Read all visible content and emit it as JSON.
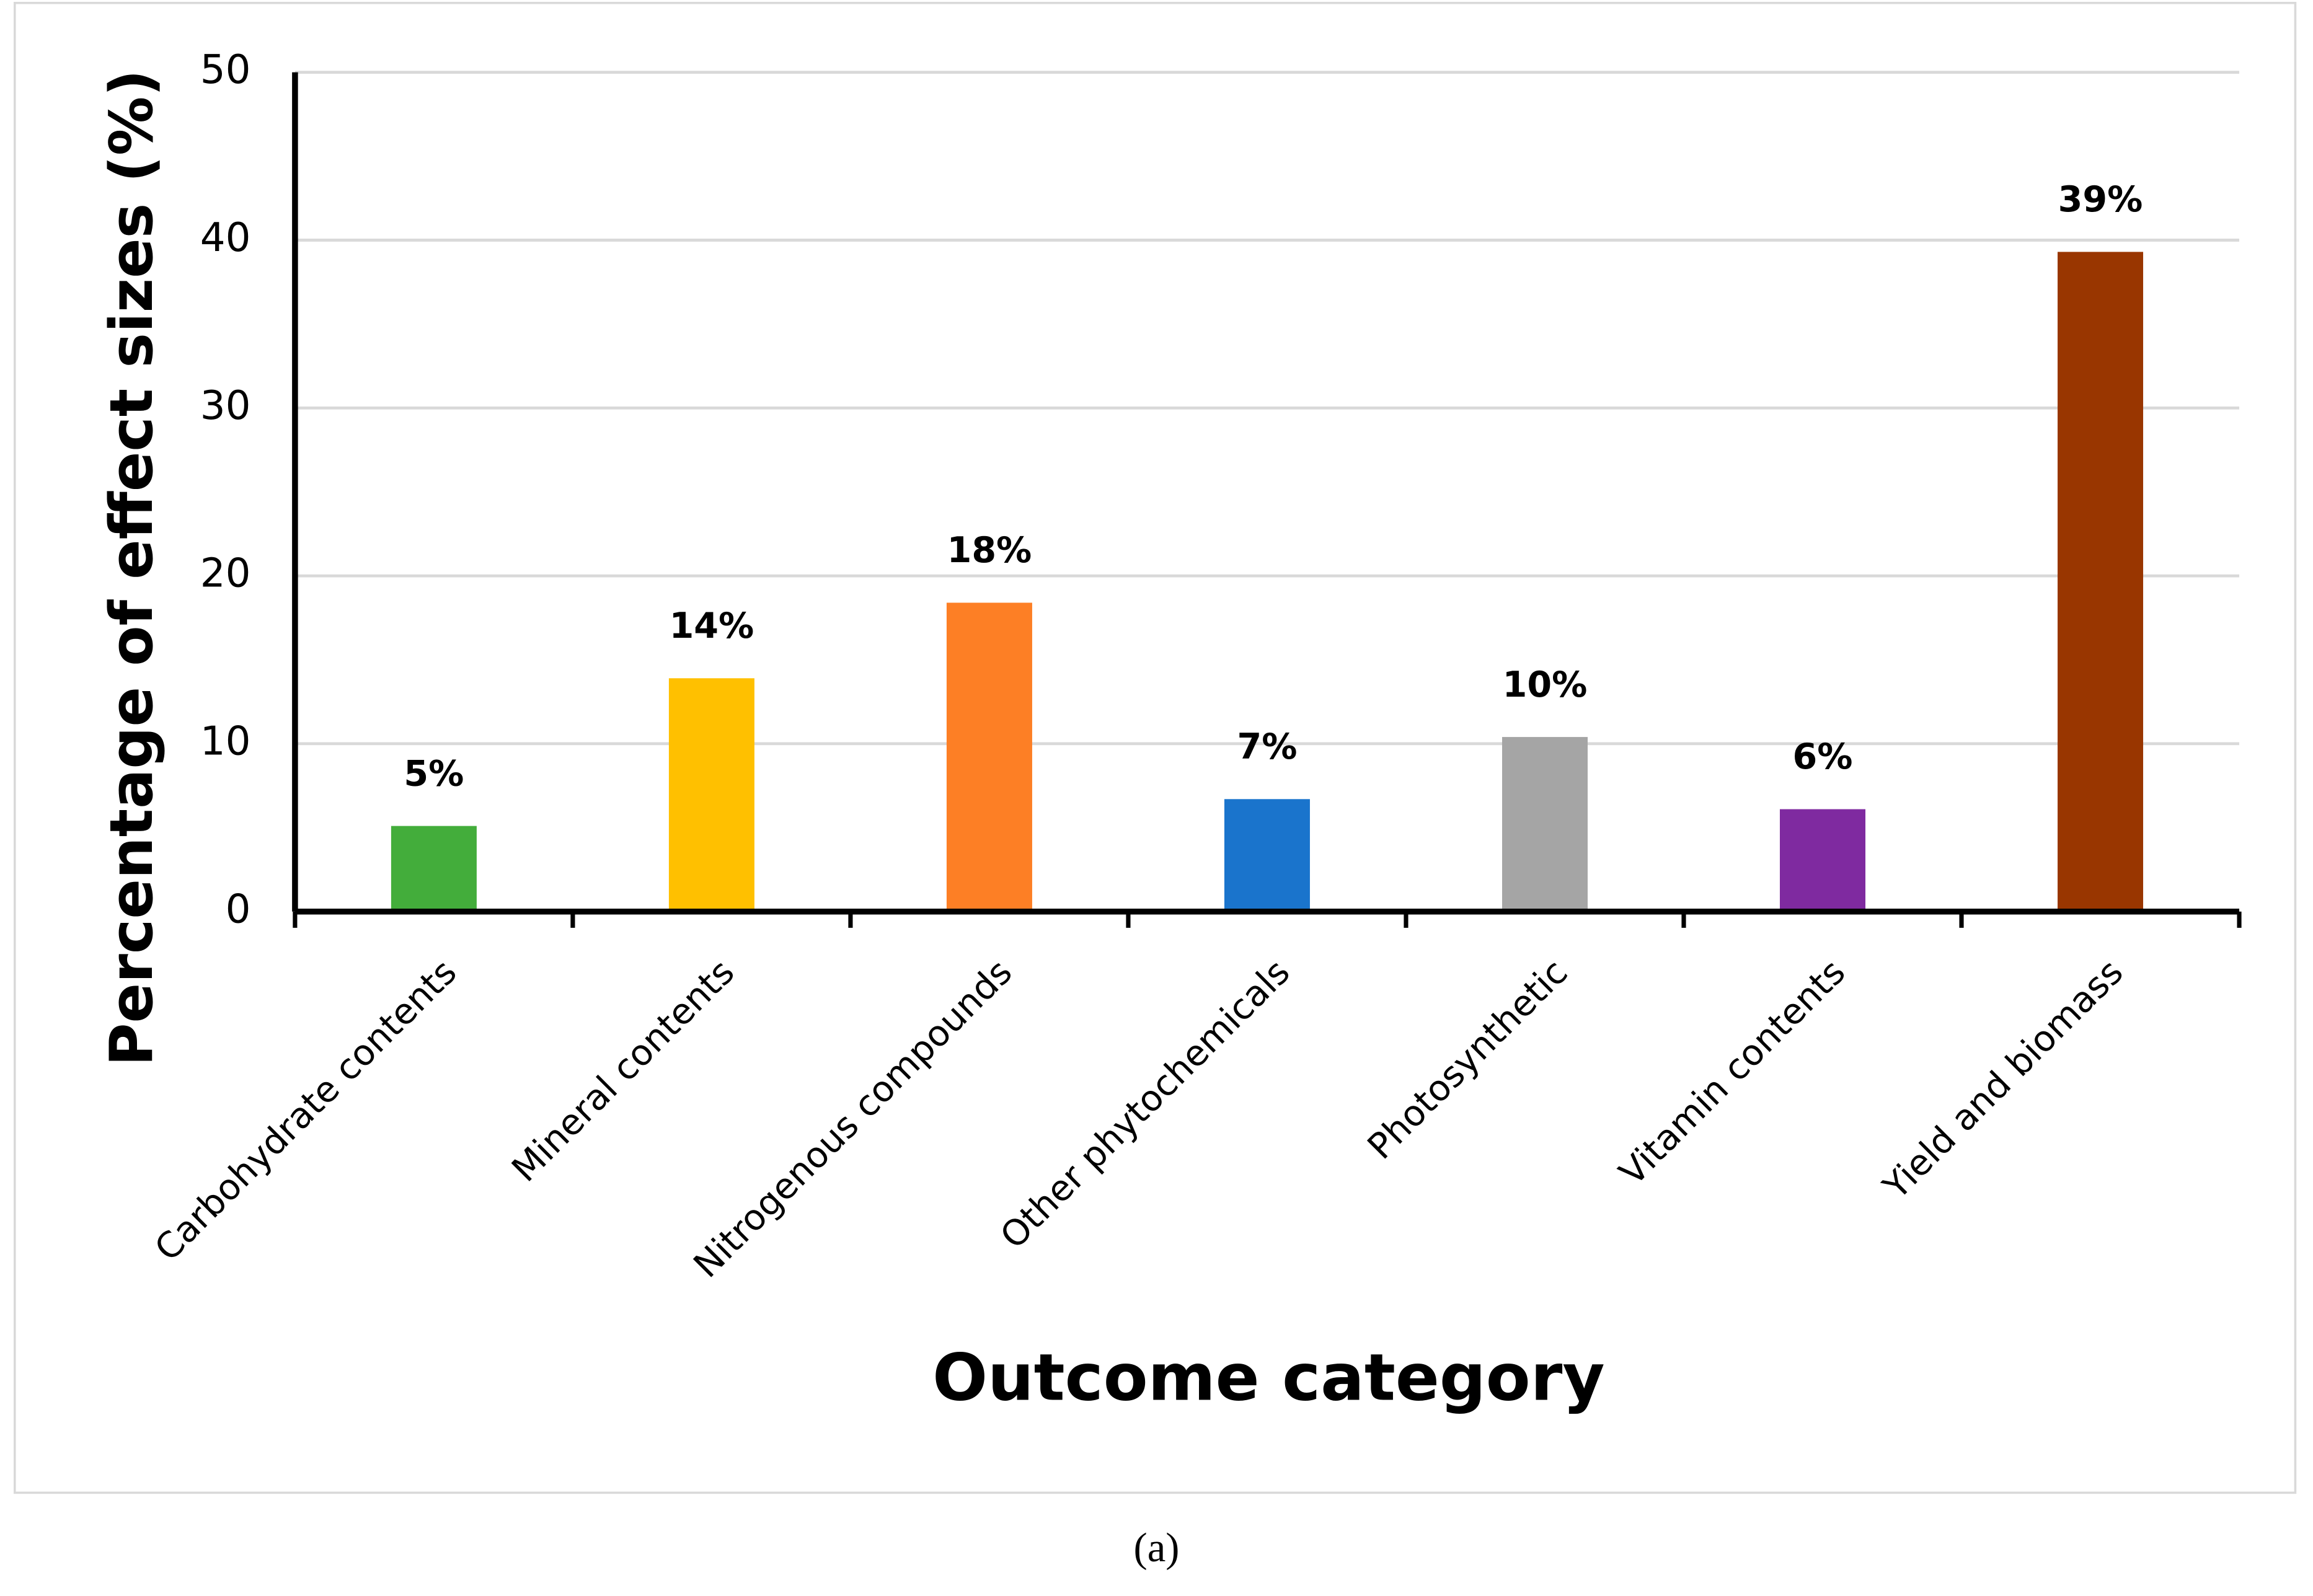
{
  "chart_data": {
    "type": "bar",
    "caption": "(a)",
    "x_label": "Outcome category",
    "y_label": "Percentage of effect sizes (%)",
    "categories": [
      "Carbohydrate contents",
      "Mineral contents",
      "Nitrogenous compounds",
      "Other phytochemicals",
      "Photosynthetic",
      "Vitamin contents",
      "Yield and biomass"
    ],
    "values": [
      5.1,
      13.9,
      18.4,
      6.7,
      10.4,
      6.1,
      39.3
    ],
    "value_labels": [
      "5%",
      "14%",
      "18%",
      "7%",
      "10%",
      "6%",
      "39%"
    ],
    "colors": [
      "#43ad3b",
      "#ffc000",
      "#fd7f25",
      "#1a74cc",
      "#a5a5a5",
      "#7f2aa0",
      "#993600"
    ],
    "ylim": [
      0,
      50
    ],
    "yticks": [
      0,
      10,
      20,
      30,
      40,
      50
    ],
    "grid": true
  }
}
